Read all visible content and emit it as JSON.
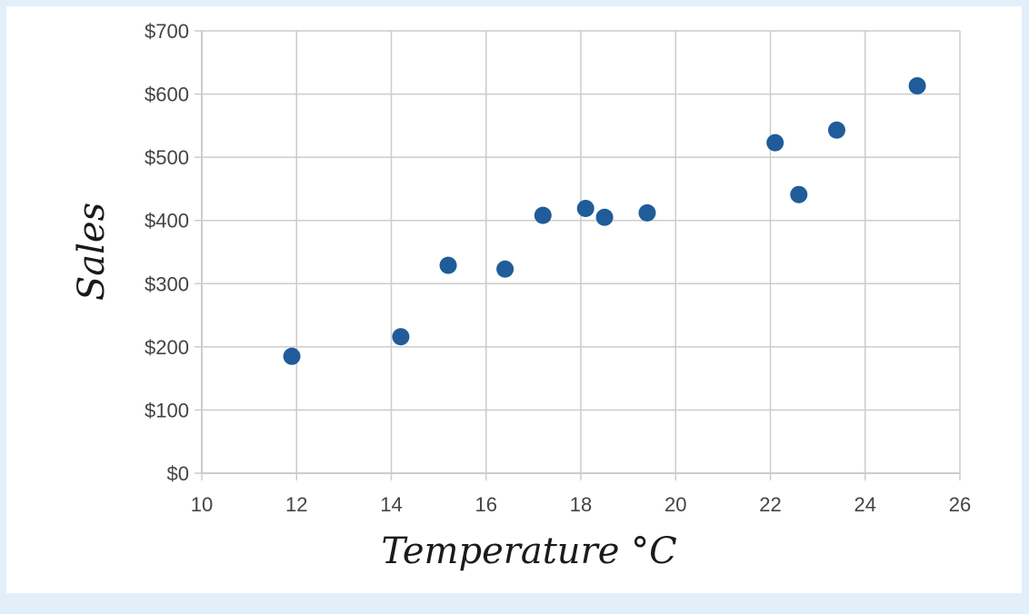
{
  "colors": {
    "page_background": "#e3eff8",
    "plot_background": "#ffffff",
    "gridline": "#cccccc",
    "point": "#1f5c99"
  },
  "chart_data": {
    "type": "scatter",
    "title": "",
    "xlabel": "Temperature °C",
    "ylabel": "Sales",
    "xlim": [
      10,
      26
    ],
    "ylim": [
      0,
      700
    ],
    "x_ticks": [
      10,
      12,
      14,
      16,
      18,
      20,
      22,
      24,
      26
    ],
    "y_ticks": [
      0,
      100,
      200,
      300,
      400,
      500,
      600,
      700
    ],
    "x_tick_labels": [
      "10",
      "12",
      "14",
      "16",
      "18",
      "20",
      "22",
      "24",
      "26"
    ],
    "y_tick_labels": [
      "$0",
      "$100",
      "$200",
      "$300",
      "$400",
      "$500",
      "$600",
      "$700"
    ],
    "grid": true,
    "legend": "none",
    "series": [
      {
        "points": [
          {
            "x": 11.9,
            "y": 185
          },
          {
            "x": 14.2,
            "y": 216
          },
          {
            "x": 15.2,
            "y": 329
          },
          {
            "x": 16.4,
            "y": 323
          },
          {
            "x": 17.2,
            "y": 408
          },
          {
            "x": 18.1,
            "y": 419
          },
          {
            "x": 18.5,
            "y": 405
          },
          {
            "x": 19.4,
            "y": 412
          },
          {
            "x": 22.1,
            "y": 523
          },
          {
            "x": 22.6,
            "y": 441
          },
          {
            "x": 23.4,
            "y": 543
          },
          {
            "x": 25.1,
            "y": 613
          }
        ]
      }
    ]
  }
}
